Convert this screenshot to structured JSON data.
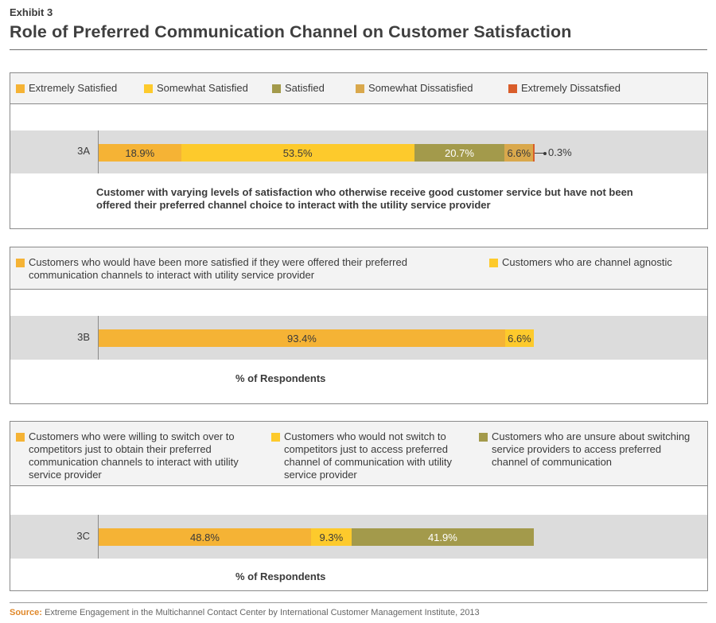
{
  "exhibit": "Exhibit 3",
  "title": "Role of Preferred Communication Channel on Customer Satisfaction",
  "source_label": "Source:",
  "source_text": "Extreme Engagement in the Multichannel Contact Center by International Customer Management Institute, 2013",
  "colors": {
    "extremely_satisfied": "#f5b335",
    "somewhat_satisfied": "#fdca2c",
    "satisfied": "#a39a4b",
    "somewhat_dissatisfied": "#d9a84c",
    "extremely_dissatisfied": "#d95d2a",
    "band": "#dcdcdc"
  },
  "chart_data": [
    {
      "type": "bar",
      "orientation": "horizontal",
      "stacked": true,
      "categories": [
        "3A"
      ],
      "series": [
        {
          "name": "Extremely Satisfied",
          "values": [
            18.9
          ],
          "label": "18.9%"
        },
        {
          "name": "Somewhat Satisfied",
          "values": [
            53.5
          ],
          "label": "53.5%"
        },
        {
          "name": "Satisfied",
          "values": [
            20.7
          ],
          "label": "20.7%"
        },
        {
          "name": "Somewhat Dissatisfied",
          "values": [
            6.6
          ],
          "label": "6.6%"
        },
        {
          "name": "Extremely Dissatsfied",
          "values": [
            0.3
          ],
          "label": "0.3%"
        }
      ],
      "caption": "Customer with varying levels of satisfaction who otherwise receive good customer service but have not been offered their preferred channel choice to interact with the utility service provider",
      "legend_position": "top"
    },
    {
      "type": "bar",
      "orientation": "horizontal",
      "stacked": true,
      "categories": [
        "3B"
      ],
      "series": [
        {
          "name": "Customers who would have been more satisfied if they were offered their preferred communication channels to interact with utility service provider",
          "values": [
            93.4
          ],
          "label": "93.4%"
        },
        {
          "name": "Customers who are channel agnostic",
          "values": [
            6.6
          ],
          "label": "6.6%"
        }
      ],
      "xlabel": "% of Respondents",
      "legend_position": "top"
    },
    {
      "type": "bar",
      "orientation": "horizontal",
      "stacked": true,
      "categories": [
        "3C"
      ],
      "series": [
        {
          "name": "Customers who were willing to switch over to competitors just to obtain their preferred communication channels to interact with utility service provider",
          "values": [
            48.8
          ],
          "label": "48.8%"
        },
        {
          "name": "Customers who would not switch to competitors just to access preferred channel of communication with utility service provider",
          "values": [
            9.3
          ],
          "label": "9.3%"
        },
        {
          "name": "Customers who are unsure about switching service providers to access preferred channel of communication",
          "values": [
            41.9
          ],
          "label": "41.9%"
        }
      ],
      "xlabel": "% of Respondents",
      "legend_position": "top"
    }
  ]
}
